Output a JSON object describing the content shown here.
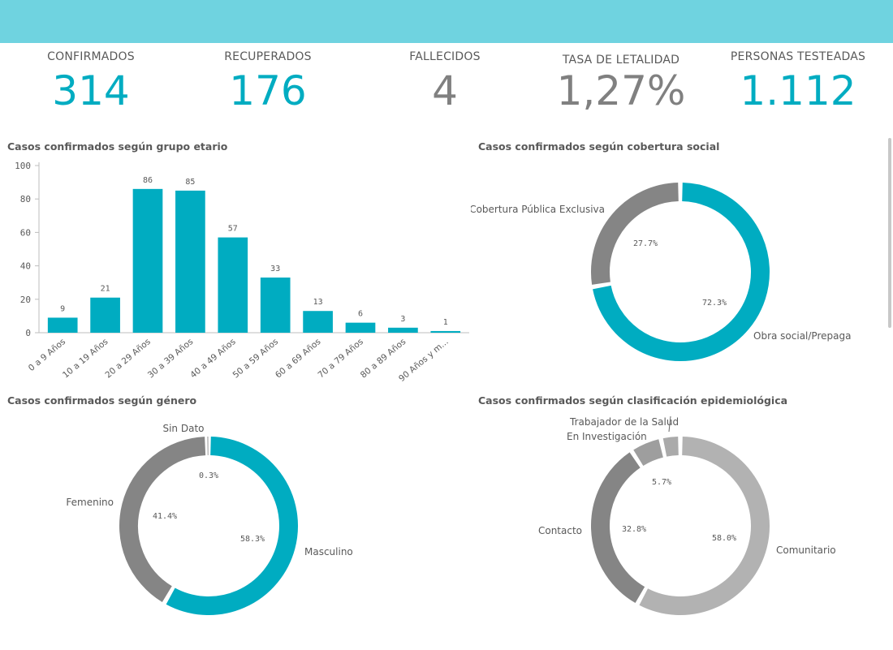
{
  "colors": {
    "accent": "#00acc1",
    "gray": "#858585",
    "header": "#6fd3e0",
    "lightgray": "#b2b2b2",
    "midgray": "#9e9e9e"
  },
  "kpis": [
    {
      "label": "CONFIRMADOS",
      "value": "314",
      "color": "#00acc1"
    },
    {
      "label": "RECUPERADOS",
      "value": "176",
      "color": "#00acc1"
    },
    {
      "label": "FALLECIDOS",
      "value": "4",
      "color": "#808080"
    },
    {
      "label": "TASA DE LETALIDAD",
      "value": "1,27%",
      "color": "#808080"
    },
    {
      "label": "PERSONAS TESTEADAS",
      "value": "1.112",
      "color": "#00acc1"
    }
  ],
  "chart_data": [
    {
      "type": "bar",
      "title": "Casos confirmados según grupo etario",
      "categories": [
        "0 a 9 Años",
        "10 a 19 Años",
        "20 a 29 Años",
        "30 a 39 Años",
        "40 a 49 Años",
        "50 a 59 Años",
        "60 a 69 Años",
        "70 a 79 Años",
        "80 a 89 Años",
        "90 Años y m..."
      ],
      "values": [
        9,
        21,
        86,
        85,
        57,
        33,
        13,
        6,
        3,
        1
      ],
      "ylim": [
        0,
        100
      ],
      "yticks": [
        0,
        20,
        40,
        60,
        80,
        100
      ],
      "grid": false
    },
    {
      "type": "pie",
      "title": "Casos confirmados según cobertura social",
      "slices": [
        {
          "label": "Obra social/Prepaga",
          "value": 72.3,
          "pct": "72.3%",
          "color": "#00acc1"
        },
        {
          "label": "Cobertura Pública Exclusiva",
          "value": 27.7,
          "pct": "27.7%",
          "color": "#858585"
        }
      ]
    },
    {
      "type": "pie",
      "title": "Casos confirmados según género",
      "slices": [
        {
          "label": "Masculino",
          "value": 58.3,
          "pct": "58.3%",
          "color": "#00acc1"
        },
        {
          "label": "Femenino",
          "value": 41.4,
          "pct": "41.4%",
          "color": "#858585"
        },
        {
          "label": "Sin Dato",
          "value": 0.3,
          "pct": "0.3%",
          "color": "#858585"
        }
      ]
    },
    {
      "type": "pie",
      "title": "Casos confirmados según clasificación epidemiológica",
      "slices": [
        {
          "label": "Comunitario",
          "value": 58.0,
          "pct": "58.0%",
          "color": "#b2b2b2"
        },
        {
          "label": "Contacto",
          "value": 32.8,
          "pct": "32.8%",
          "color": "#858585"
        },
        {
          "label": "En Investigación",
          "value": 5.7,
          "pct": "5.7%",
          "color": "#9e9e9e"
        },
        {
          "label": "Trabajador de la Salud",
          "value": 3.5,
          "pct": "",
          "color": "#aaaaaa"
        }
      ]
    }
  ]
}
